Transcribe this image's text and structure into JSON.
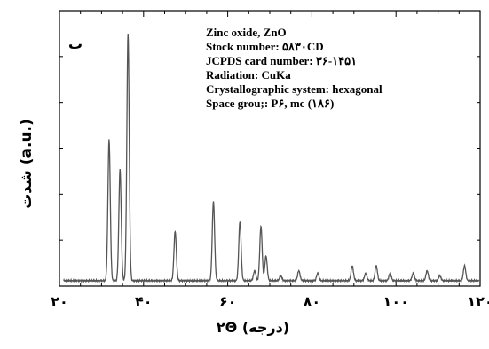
{
  "chart_data": {
    "type": "line",
    "panel_label": "ب",
    "ylabel": "شدت (a.u.)",
    "xlabel": "۲Θ (درجه)",
    "xlim": [
      20,
      120
    ],
    "ylim": [
      0,
      100
    ],
    "x_ticks": [
      20,
      40,
      60,
      80,
      100,
      120
    ],
    "x_tick_labels": [
      "۲۰",
      "۴۰",
      "۶۰",
      "۸۰",
      "۱۰۰",
      "۱۲۰"
    ],
    "baseline": 1.5,
    "peaks": [
      {
        "x": 31.8,
        "y": 57
      },
      {
        "x": 34.4,
        "y": 45
      },
      {
        "x": 36.3,
        "y": 100
      },
      {
        "x": 47.5,
        "y": 20
      },
      {
        "x": 56.6,
        "y": 32
      },
      {
        "x": 62.9,
        "y": 24
      },
      {
        "x": 66.4,
        "y": 4
      },
      {
        "x": 67.9,
        "y": 22
      },
      {
        "x": 69.1,
        "y": 10
      },
      {
        "x": 72.6,
        "y": 2
      },
      {
        "x": 76.9,
        "y": 4
      },
      {
        "x": 81.4,
        "y": 3
      },
      {
        "x": 89.6,
        "y": 6
      },
      {
        "x": 92.8,
        "y": 3
      },
      {
        "x": 95.3,
        "y": 6
      },
      {
        "x": 98.6,
        "y": 3
      },
      {
        "x": 104.1,
        "y": 3
      },
      {
        "x": 107.4,
        "y": 4
      },
      {
        "x": 110.4,
        "y": 2
      },
      {
        "x": 116.3,
        "y": 6
      }
    ],
    "annotations": [
      "Zinc oxide, ZnO",
      "Stock number: ۵۸۳۰CD",
      "JCPDS card number: ۳۶-۱۴۵۱",
      "Radiation: CuKa",
      "Crystallographic system: hexagonal",
      "Space grou;: P۶, mc (۱۸۶)"
    ],
    "line_color": "#555555"
  }
}
